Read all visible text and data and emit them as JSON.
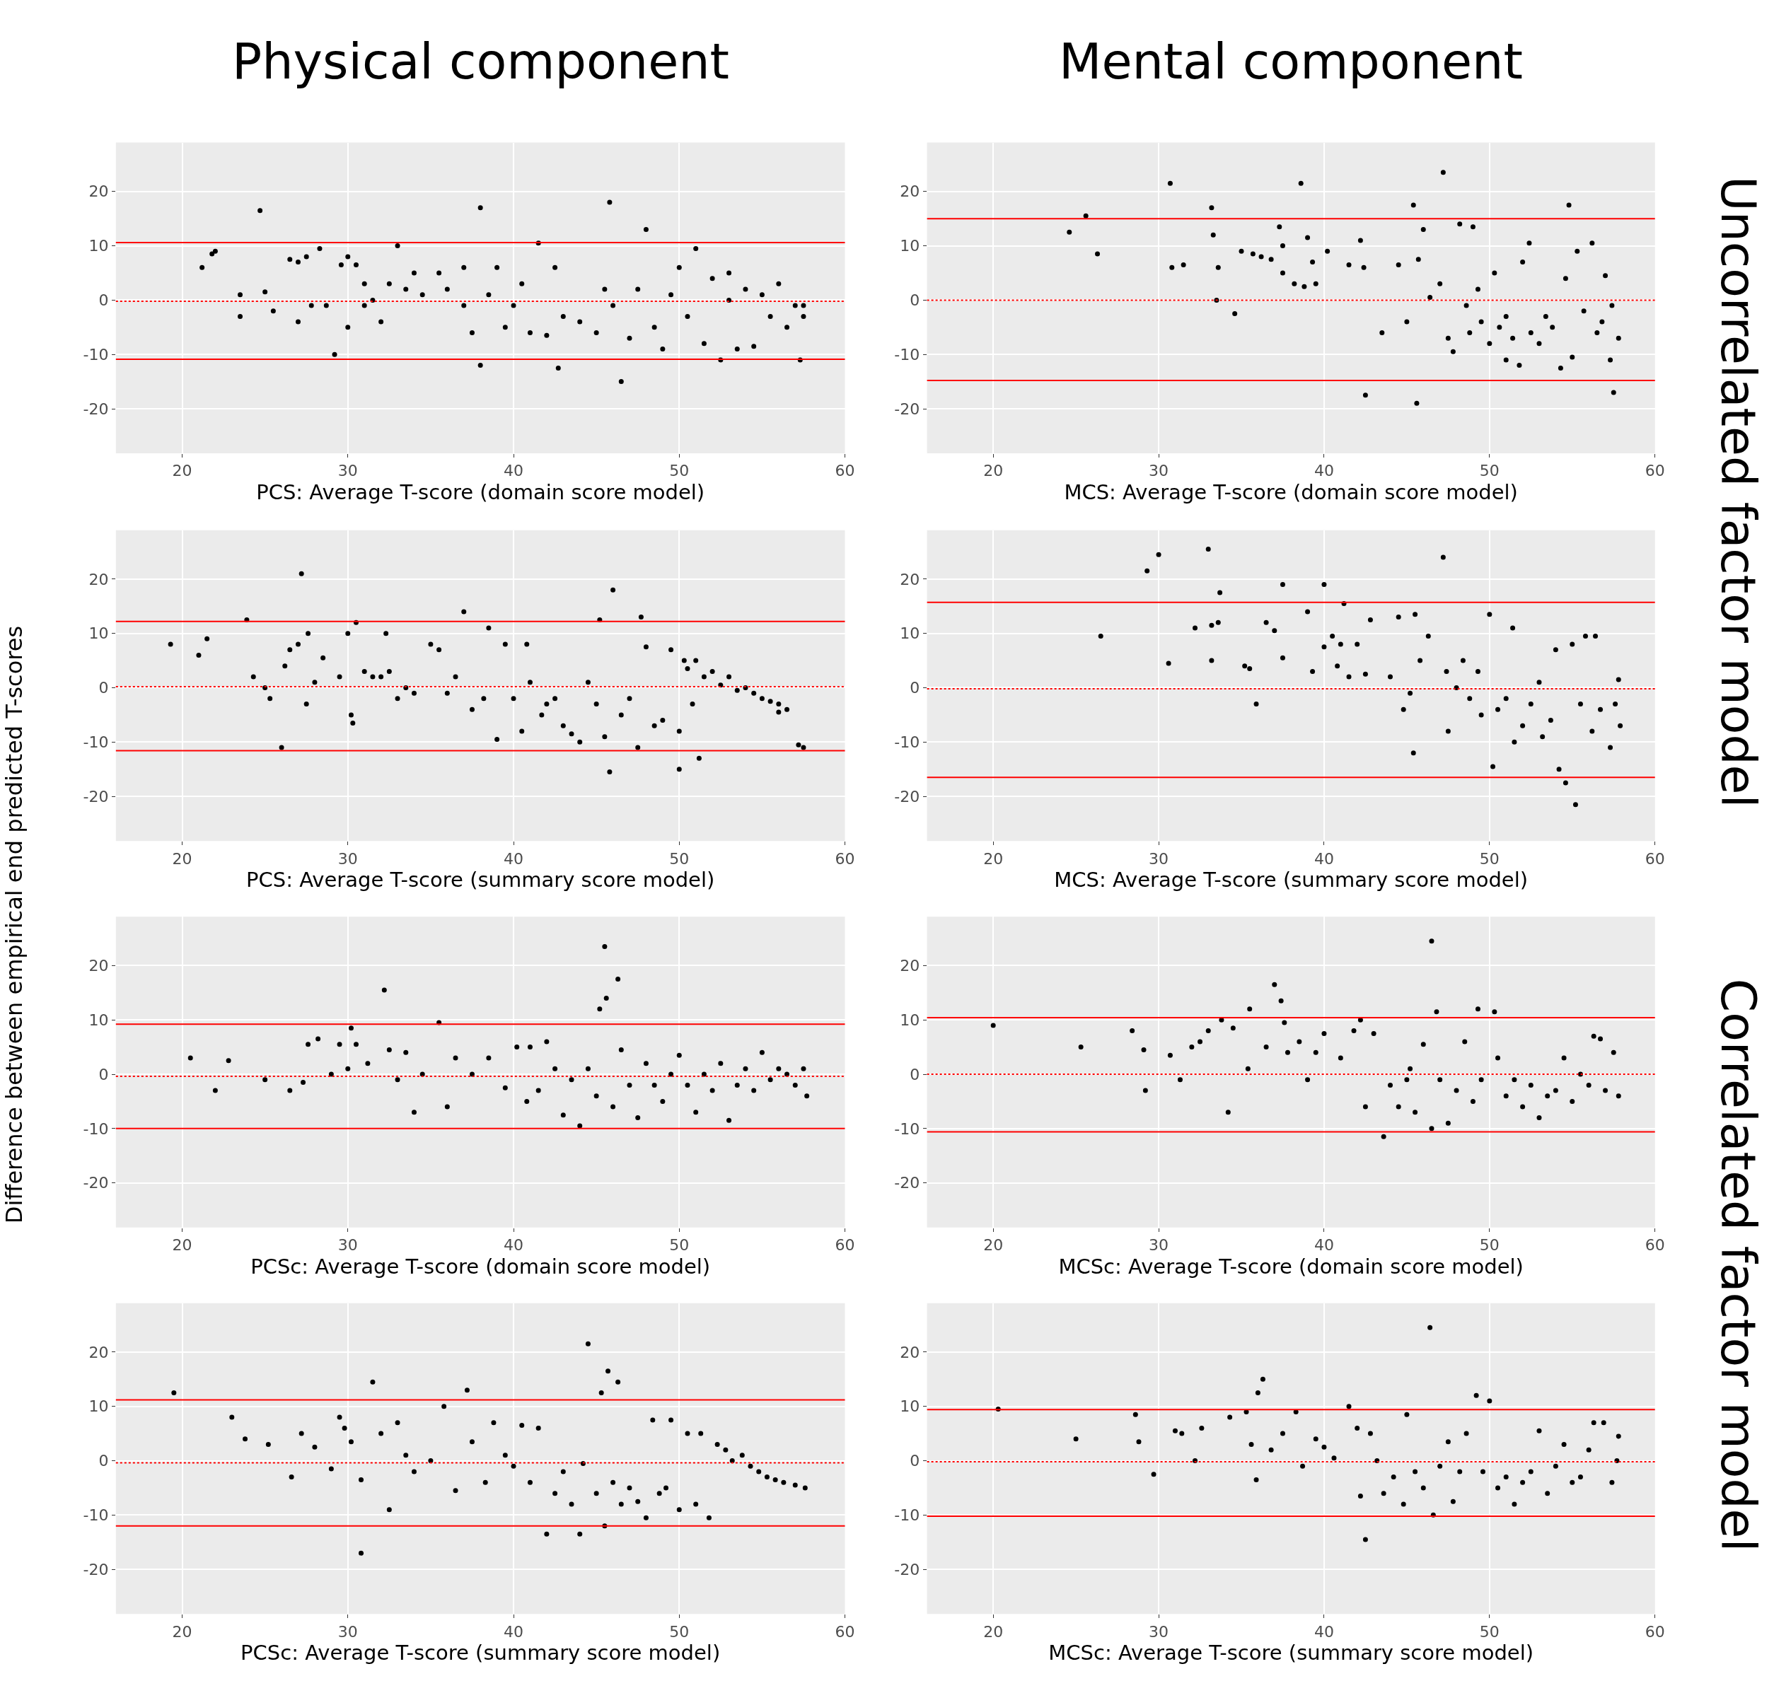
{
  "chart_data": [
    {
      "type": "scatter",
      "xlabel": "PCS: Average T-score (domain score model)",
      "annotations": [
        "Physical component"
      ],
      "xlim": [
        16,
        60
      ],
      "ylim": [
        -28.2,
        29
      ],
      "xticks": [
        20,
        30,
        40,
        50,
        60
      ],
      "yticks": [
        -20,
        -10,
        0,
        10,
        20
      ],
      "grid": true,
      "marker": "circle",
      "ref_lines": [
        {
          "axis": "y",
          "value": 10.6,
          "color": "#ff0000",
          "line_style": "solid"
        },
        {
          "axis": "y",
          "value": -0.2,
          "color": "#ff0000",
          "line_style": "dotted"
        },
        {
          "axis": "y",
          "value": -10.9,
          "color": "#ff0000",
          "line_style": "solid"
        }
      ],
      "series": [
        {
          "color": "#000000",
          "x": [
            21.2,
            21.8,
            22,
            23.5,
            23.5,
            24.7,
            25,
            25.5,
            26.5,
            27,
            27,
            27.5,
            27.8,
            28.3,
            28.7,
            29.2,
            29.6,
            30,
            30,
            30.5,
            31,
            31,
            31.5,
            32,
            32.5,
            33,
            33.5,
            34,
            34.5,
            35.5,
            36,
            37,
            37,
            37.5,
            38,
            38,
            38.5,
            39,
            39.5,
            40,
            40.5,
            41,
            41.5,
            42,
            42.5,
            42.7,
            43,
            44,
            45,
            45.5,
            45.8,
            46,
            46.5,
            47,
            47.5,
            48,
            48.5,
            49,
            49.5,
            50,
            50.5,
            51,
            51.5,
            52,
            52.5,
            53,
            53,
            53.5,
            54,
            54.5,
            55,
            55.5,
            56,
            56.5,
            57,
            57.3,
            57.5,
            57.5
          ],
          "values": [
            6,
            8.5,
            9,
            -3,
            1,
            16.5,
            1.5,
            -2,
            7.5,
            -4,
            7,
            8,
            -1,
            9.5,
            -1,
            -10,
            6.5,
            -5,
            8,
            6.5,
            3,
            -1,
            0,
            -4,
            3,
            10,
            2,
            5,
            1,
            5,
            2,
            -1,
            6,
            -6,
            -12,
            17,
            1,
            6,
            -5,
            -1,
            3,
            -6,
            10.5,
            -6.5,
            6,
            -12.5,
            -3,
            -4,
            -6,
            2,
            18,
            -1,
            -15,
            -7,
            2,
            13,
            -5,
            -9,
            1,
            6,
            -3,
            9.5,
            -8,
            4,
            -11,
            0,
            5,
            -9,
            2,
            -8.5,
            1,
            -3,
            3,
            -5,
            -1,
            -11,
            -3,
            -1
          ]
        }
      ]
    },
    {
      "type": "scatter",
      "xlabel": "MCS: Average T-score (domain score model)",
      "annotations": [
        "Mental component",
        "Uncorrelated factor model"
      ],
      "xlim": [
        16,
        60
      ],
      "ylim": [
        -28.2,
        29
      ],
      "xticks": [
        20,
        30,
        40,
        50,
        60
      ],
      "yticks": [
        -20,
        -10,
        0,
        10,
        20
      ],
      "grid": true,
      "marker": "circle",
      "ref_lines": [
        {
          "axis": "y",
          "value": 15,
          "color": "#ff0000",
          "line_style": "solid"
        },
        {
          "axis": "y",
          "value": 0,
          "color": "#ff0000",
          "line_style": "dotted"
        },
        {
          "axis": "y",
          "value": -14.8,
          "color": "#ff0000",
          "line_style": "solid"
        }
      ],
      "series": [
        {
          "color": "#000000",
          "x": [
            24.6,
            25.6,
            26.3,
            30.7,
            30.8,
            31.5,
            33.2,
            33.3,
            33.5,
            33.6,
            34.6,
            35,
            35.7,
            36.2,
            36.8,
            37.3,
            37.5,
            37.5,
            38.2,
            38.6,
            38.8,
            39,
            39.3,
            39.5,
            40.2,
            41.5,
            42.2,
            42.5,
            42.4,
            43.5,
            44.5,
            45,
            45.4,
            45.6,
            45.7,
            46,
            46.4,
            47,
            47.2,
            47.5,
            47.8,
            48.2,
            48.6,
            48.8,
            49,
            49.3,
            49.5,
            50,
            50.3,
            50.6,
            51,
            51,
            51.4,
            51.8,
            52,
            52.4,
            52.5,
            53,
            53.4,
            53.8,
            54.3,
            54.6,
            54.8,
            55,
            55.3,
            55.7,
            56.2,
            56.5,
            56.8,
            57,
            57.3,
            57.4,
            57.5,
            57.8
          ],
          "values": [
            12.5,
            15.5,
            8.5,
            21.5,
            6,
            6.5,
            17,
            12,
            0,
            6,
            -2.5,
            9,
            8.5,
            8,
            7.5,
            13.5,
            5,
            10,
            3,
            21.5,
            2.5,
            11.5,
            7,
            3,
            9,
            6.5,
            11,
            -17.5,
            6,
            -6,
            6.5,
            -4,
            17.5,
            -19,
            7.5,
            13,
            0.5,
            3,
            23.5,
            -7,
            -9.5,
            14,
            -1,
            -6,
            13.5,
            2,
            -4,
            -8,
            5,
            -5,
            -11,
            -3,
            -7,
            -12,
            7,
            10.5,
            -6,
            -8,
            -3,
            -5,
            -12.5,
            4,
            17.5,
            -10.5,
            9,
            -2,
            10.5,
            -6,
            -4,
            4.5,
            -11,
            -1,
            -17,
            -7
          ]
        }
      ]
    },
    {
      "type": "scatter",
      "xlabel": "PCS: Average T-score (summary score model)",
      "ylabel": "Difference between empirical end predicted T-scores",
      "xlim": [
        16,
        60
      ],
      "ylim": [
        -28.2,
        29
      ],
      "xticks": [
        20,
        30,
        40,
        50,
        60
      ],
      "yticks": [
        -20,
        -10,
        0,
        10,
        20
      ],
      "grid": true,
      "marker": "circle",
      "ref_lines": [
        {
          "axis": "y",
          "value": 12.2,
          "color": "#ff0000",
          "line_style": "solid"
        },
        {
          "axis": "y",
          "value": 0.2,
          "color": "#ff0000",
          "line_style": "dotted"
        },
        {
          "axis": "y",
          "value": -11.6,
          "color": "#ff0000",
          "line_style": "solid"
        }
      ],
      "series": [
        {
          "color": "#000000",
          "x": [
            19.3,
            21,
            21.5,
            23.9,
            24.3,
            25,
            25.3,
            26,
            26.2,
            26.5,
            27,
            27.2,
            27.5,
            27.6,
            28,
            28.5,
            29.5,
            30,
            30.2,
            30.3,
            30.5,
            31,
            31.5,
            32,
            32.3,
            32.5,
            33,
            33.5,
            34,
            35,
            35.5,
            36,
            36.5,
            37,
            37.5,
            38.2,
            38.5,
            39,
            39.5,
            40,
            40.5,
            40.8,
            41,
            41.7,
            42,
            42.5,
            43,
            43.5,
            44,
            44.5,
            45,
            45.2,
            45.5,
            45.8,
            46,
            46.5,
            47,
            47.5,
            47.7,
            48,
            48.5,
            49,
            49.5,
            50,
            50,
            50.3,
            50.5,
            50.8,
            51,
            51.2,
            51.5,
            52,
            52.5,
            53,
            53.5,
            54,
            54.5,
            55,
            55.5,
            56,
            56,
            56.5,
            57.2,
            57.5
          ],
          "values": [
            8,
            6,
            9,
            12.5,
            2,
            0,
            -2,
            -11,
            4,
            7,
            8,
            21,
            -3,
            10,
            1,
            5.5,
            2,
            10,
            -5,
            -6.5,
            12,
            3,
            2,
            2,
            10,
            3,
            -2,
            0,
            -1,
            8,
            7,
            -1,
            2,
            14,
            -4,
            -2,
            11,
            -9.5,
            8,
            -2,
            -8,
            8,
            1,
            -5,
            -3,
            -2,
            -7,
            -8.5,
            -10,
            1,
            -3,
            12.5,
            -9,
            -15.5,
            18,
            -5,
            -2,
            -11,
            13,
            7.5,
            -7,
            -6,
            7,
            -8,
            -15,
            5,
            3.5,
            -3,
            5,
            -13,
            2,
            3,
            0.5,
            2,
            -0.5,
            0,
            -1,
            -2,
            -2.5,
            -3,
            -4.5,
            -4,
            -10.5,
            -11
          ]
        }
      ]
    },
    {
      "type": "scatter",
      "xlabel": "MCS: Average T-score (summary score model)",
      "xlim": [
        16,
        60
      ],
      "ylim": [
        -28.2,
        29
      ],
      "xticks": [
        20,
        30,
        40,
        50,
        60
      ],
      "yticks": [
        -20,
        -10,
        0,
        10,
        20
      ],
      "grid": true,
      "marker": "circle",
      "ref_lines": [
        {
          "axis": "y",
          "value": 15.7,
          "color": "#ff0000",
          "line_style": "solid"
        },
        {
          "axis": "y",
          "value": -0.2,
          "color": "#ff0000",
          "line_style": "dotted"
        },
        {
          "axis": "y",
          "value": -16.5,
          "color": "#ff0000",
          "line_style": "solid"
        }
      ],
      "series": [
        {
          "color": "#000000",
          "x": [
            26.5,
            29.3,
            30,
            30.6,
            32.2,
            33,
            33.2,
            33.2,
            33.6,
            33.7,
            35.2,
            35.5,
            35.9,
            36.5,
            37,
            37.5,
            37.5,
            39,
            39.3,
            40,
            40,
            40.5,
            40.8,
            41,
            41.2,
            41.5,
            42,
            42.5,
            42.8,
            44,
            44.5,
            44.8,
            45.2,
            45.4,
            45.5,
            45.8,
            46.3,
            47.2,
            47.4,
            47.5,
            48,
            48.4,
            48.8,
            49.3,
            49.5,
            50,
            50.2,
            50.5,
            51,
            51.4,
            51.5,
            52,
            52.5,
            53,
            53.2,
            53.7,
            54,
            54.2,
            54.6,
            55,
            55.2,
            55.5,
            55.8,
            56.2,
            56.4,
            56.7,
            57.3,
            57.6,
            57.8,
            57.9
          ],
          "values": [
            9.5,
            21.5,
            24.5,
            4.5,
            11,
            25.5,
            5,
            11.5,
            12,
            17.5,
            4,
            3.5,
            -3,
            12,
            10.5,
            5.5,
            19,
            14,
            3,
            19,
            7.5,
            9.5,
            4,
            8,
            15.5,
            2,
            8,
            2.5,
            12.5,
            2,
            13,
            -4,
            -1,
            -12,
            13.5,
            5,
            9.5,
            24,
            3,
            -8,
            0,
            5,
            -2,
            3,
            -5,
            13.5,
            -14.5,
            -4,
            -2,
            11,
            -10,
            -7,
            -3,
            1,
            -9,
            -6,
            7,
            -15,
            -17.5,
            8,
            -21.5,
            -3,
            9.5,
            -8,
            9.5,
            -4,
            -11,
            -3,
            1.5,
            -7
          ]
        }
      ]
    },
    {
      "type": "scatter",
      "xlabel": "PCSc: Average T-score (domain score model)",
      "xlim": [
        16,
        60
      ],
      "ylim": [
        -28.2,
        29
      ],
      "xticks": [
        20,
        30,
        40,
        50,
        60
      ],
      "yticks": [
        -20,
        -10,
        0,
        10,
        20
      ],
      "grid": true,
      "marker": "circle",
      "ref_lines": [
        {
          "axis": "y",
          "value": 9.2,
          "color": "#ff0000",
          "line_style": "solid"
        },
        {
          "axis": "y",
          "value": -0.4,
          "color": "#ff0000",
          "line_style": "dotted"
        },
        {
          "axis": "y",
          "value": -10,
          "color": "#ff0000",
          "line_style": "solid"
        }
      ],
      "series": [
        {
          "color": "#000000",
          "x": [
            20.5,
            22,
            22.8,
            25,
            26.5,
            27.3,
            27.6,
            28.2,
            29,
            29.5,
            30,
            30.2,
            30.5,
            31.2,
            32.2,
            32.5,
            33,
            33.5,
            34,
            34.5,
            35.5,
            36,
            36.5,
            37.5,
            38.5,
            39.5,
            40.2,
            40.8,
            41,
            41.5,
            42,
            42.5,
            43,
            43.5,
            44,
            44.5,
            45,
            45.2,
            45.6,
            46,
            46.3,
            45.5,
            46.5,
            47,
            47.5,
            48,
            48.5,
            49,
            49.5,
            50,
            50.5,
            51,
            51.5,
            52,
            52.5,
            53,
            53.5,
            54,
            54.5,
            55,
            55.5,
            56,
            56.5,
            57,
            57.5,
            57.7
          ],
          "values": [
            3,
            -3,
            2.5,
            -1,
            -3,
            -1.5,
            5.5,
            6.5,
            0,
            5.5,
            1,
            8.5,
            5.5,
            2,
            15.5,
            4.5,
            -1,
            4,
            -7,
            0,
            9.5,
            -6,
            3,
            0,
            3,
            -2.5,
            5,
            -5,
            5,
            -3,
            6,
            1,
            -7.5,
            -1,
            -9.5,
            1,
            -4,
            12,
            14,
            -6,
            17.5,
            23.5,
            4.5,
            -2,
            -8,
            2,
            -2,
            -5,
            0,
            3.5,
            -2,
            -7,
            0,
            -3,
            2,
            -8.5,
            -2,
            1,
            -3,
            4,
            -1,
            1,
            0,
            -2,
            1,
            -4
          ]
        }
      ]
    },
    {
      "type": "scatter",
      "xlabel": "MCSc: Average T-score (domain score model)",
      "annotations": [
        "Correlated factor model"
      ],
      "xlim": [
        16,
        60
      ],
      "ylim": [
        -28.2,
        29
      ],
      "xticks": [
        20,
        30,
        40,
        50,
        60
      ],
      "yticks": [
        -20,
        -10,
        0,
        10,
        20
      ],
      "grid": true,
      "marker": "circle",
      "ref_lines": [
        {
          "axis": "y",
          "value": 10.4,
          "color": "#ff0000",
          "line_style": "solid"
        },
        {
          "axis": "y",
          "value": 0,
          "color": "#ff0000",
          "line_style": "dotted"
        },
        {
          "axis": "y",
          "value": -10.6,
          "color": "#ff0000",
          "line_style": "solid"
        }
      ],
      "series": [
        {
          "color": "#000000",
          "x": [
            20,
            25.3,
            28.4,
            29.1,
            29.2,
            30.7,
            31.3,
            32,
            32.5,
            33,
            33.8,
            34.2,
            34.5,
            35.4,
            35.5,
            36.5,
            37,
            37.4,
            37.6,
            37.8,
            38.5,
            39,
            39.5,
            40,
            41,
            41.8,
            42.2,
            42.5,
            43,
            43.6,
            44,
            44.5,
            45,
            45.2,
            45.5,
            46,
            46.5,
            46.5,
            46.8,
            47,
            47.5,
            48,
            48.5,
            49,
            49.3,
            49.5,
            50.3,
            50.5,
            51,
            51.5,
            52,
            52.5,
            53,
            53.5,
            54,
            54.5,
            55,
            55.5,
            56,
            56.3,
            56.7,
            57,
            57.5,
            57.8
          ],
          "values": [
            9,
            5,
            8,
            4.5,
            -3,
            3.5,
            -1,
            5,
            6,
            8,
            10,
            -7,
            8.5,
            1,
            12,
            5,
            16.5,
            13.5,
            9.5,
            4,
            6,
            -1,
            4,
            7.5,
            3,
            8,
            10,
            -6,
            7.5,
            -11.5,
            -2,
            -6,
            -1,
            1,
            -7,
            5.5,
            24.5,
            -10,
            11.5,
            -1,
            -9,
            -3,
            6,
            -5,
            12,
            -1,
            11.5,
            3,
            -4,
            -1,
            -6,
            -2,
            -8,
            -4,
            -3,
            3,
            -5,
            0,
            -2,
            7,
            6.5,
            -3,
            4,
            -4
          ]
        }
      ]
    },
    {
      "type": "scatter",
      "xlabel": "PCSc: Average T-score (summary score model)",
      "xlim": [
        16,
        60
      ],
      "ylim": [
        -28.2,
        29
      ],
      "xticks": [
        20,
        30,
        40,
        50,
        60
      ],
      "yticks": [
        -20,
        -10,
        0,
        10,
        20
      ],
      "grid": true,
      "marker": "circle",
      "ref_lines": [
        {
          "axis": "y",
          "value": 11.2,
          "color": "#ff0000",
          "line_style": "solid"
        },
        {
          "axis": "y",
          "value": -0.4,
          "color": "#ff0000",
          "line_style": "dotted"
        },
        {
          "axis": "y",
          "value": -12,
          "color": "#ff0000",
          "line_style": "solid"
        }
      ],
      "series": [
        {
          "color": "#000000",
          "x": [
            19.5,
            23,
            23.8,
            25.2,
            26.6,
            27.2,
            28,
            29,
            29.5,
            29.8,
            30.2,
            30.8,
            30.8,
            31.5,
            32,
            32.5,
            33,
            33.5,
            34,
            35,
            35.8,
            36.5,
            37.2,
            37.5,
            38.3,
            38.8,
            39.5,
            40,
            40.5,
            41,
            41.5,
            42,
            42.5,
            43,
            43.5,
            44,
            44.2,
            44.5,
            45,
            45.3,
            45.5,
            45.7,
            46,
            46.3,
            46.5,
            47,
            47.5,
            48,
            48.4,
            48.8,
            49.2,
            49.5,
            50,
            50.5,
            51,
            51.3,
            51.8,
            52.3,
            52.8,
            53.2,
            53.8,
            54.3,
            54.8,
            55.3,
            55.8,
            56.3,
            57,
            57.6
          ],
          "values": [
            12.5,
            8,
            4,
            3,
            -3,
            5,
            2.5,
            -1.5,
            8,
            6,
            3.5,
            -3.5,
            -17,
            14.5,
            5,
            -9,
            7,
            1,
            -2,
            0,
            10,
            -5.5,
            13,
            3.5,
            -4,
            7,
            1,
            -1,
            6.5,
            -4,
            6,
            -13.5,
            -6,
            -2,
            -8,
            -13.5,
            -0.5,
            21.5,
            -6,
            12.5,
            -12,
            16.5,
            -4,
            14.5,
            -8,
            -5,
            -7.5,
            -10.5,
            7.5,
            -6,
            -5,
            7.5,
            -9,
            5,
            -8,
            5,
            -10.5,
            3,
            2,
            0,
            1,
            -1,
            -2,
            -3,
            -3.5,
            -4,
            -4.5,
            -5
          ]
        }
      ]
    },
    {
      "type": "scatter",
      "xlabel": "MCSc: Average T-score (summary score model)",
      "xlim": [
        16,
        60
      ],
      "ylim": [
        -28.2,
        29
      ],
      "xticks": [
        20,
        30,
        40,
        50,
        60
      ],
      "yticks": [
        -20,
        -10,
        0,
        10,
        20
      ],
      "grid": true,
      "marker": "circle",
      "ref_lines": [
        {
          "axis": "y",
          "value": 9.4,
          "color": "#ff0000",
          "line_style": "solid"
        },
        {
          "axis": "y",
          "value": -0.2,
          "color": "#ff0000",
          "line_style": "dotted"
        },
        {
          "axis": "y",
          "value": -10.2,
          "color": "#ff0000",
          "line_style": "solid"
        }
      ],
      "series": [
        {
          "color": "#000000",
          "x": [
            20.3,
            25,
            28.6,
            28.8,
            29.7,
            31,
            31.4,
            32.2,
            32.6,
            34.3,
            35.3,
            35.6,
            35.9,
            36,
            36.3,
            36.8,
            37.5,
            38.3,
            38.7,
            39.5,
            40,
            40.6,
            41.5,
            42,
            42.2,
            42.5,
            42.8,
            43.2,
            43.6,
            44.2,
            44.8,
            45,
            45.5,
            46,
            46.4,
            46.6,
            47,
            47.5,
            47.8,
            48.2,
            48.6,
            49.2,
            49.6,
            50,
            50.5,
            51,
            51.5,
            52,
            52.5,
            53,
            53.5,
            54,
            54.5,
            55,
            55.5,
            56,
            56.3,
            56.9,
            57.4,
            57.7,
            57.8
          ],
          "values": [
            9.5,
            4,
            8.5,
            3.5,
            -2.5,
            5.5,
            5,
            0,
            6,
            8,
            9,
            3,
            -3.5,
            12.5,
            15,
            2,
            5,
            9,
            -1,
            4,
            2.5,
            0.5,
            10,
            6,
            -6.5,
            -14.5,
            5,
            0,
            -6,
            -3,
            -8,
            8.5,
            -2,
            -5,
            24.5,
            -10,
            -1,
            3.5,
            -7.5,
            -2,
            5,
            12,
            -2,
            11,
            -5,
            -3,
            -8,
            -4,
            -2,
            5.5,
            -6,
            -1,
            3,
            -4,
            -3,
            2,
            7,
            7,
            -4,
            0,
            4.5
          ]
        }
      ]
    }
  ]
}
